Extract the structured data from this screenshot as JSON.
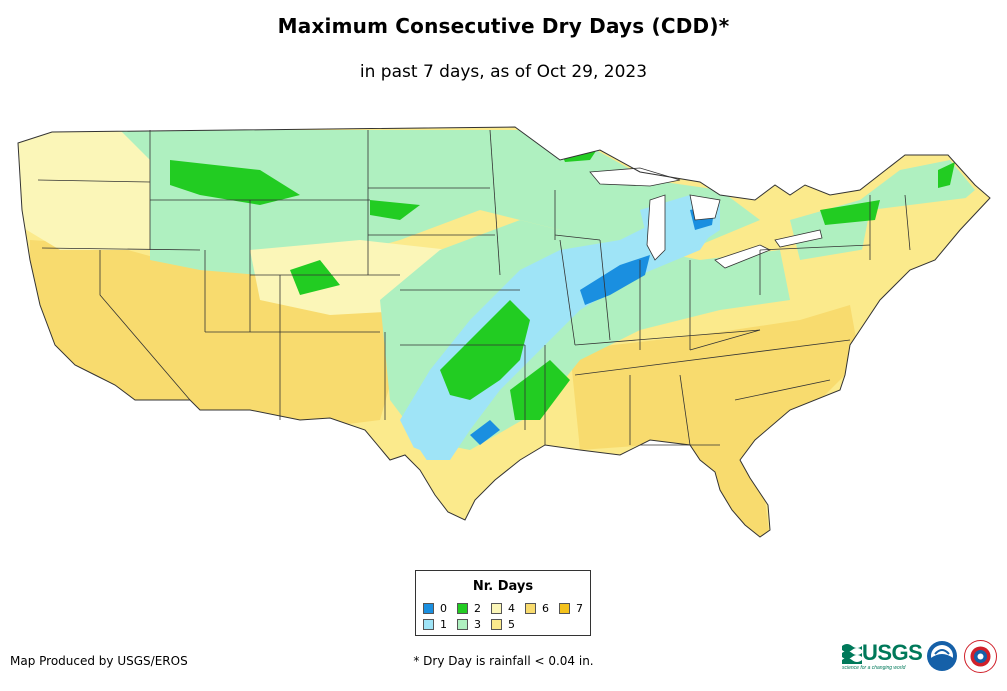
{
  "header": {
    "title": "Maximum Consecutive Dry Days (CDD)*",
    "subtitle": "in past 7 days, as of Oct 29, 2023"
  },
  "legend": {
    "title": "Nr. Days",
    "items": [
      {
        "label": "0",
        "color": "#1a8fe0"
      },
      {
        "label": "1",
        "color": "#9fe4f7"
      },
      {
        "label": "2",
        "color": "#22cc22"
      },
      {
        "label": "3",
        "color": "#aff0c0"
      },
      {
        "label": "4",
        "color": "#fbf6b8"
      },
      {
        "label": "5",
        "color": "#fbea8c"
      },
      {
        "label": "6",
        "color": "#f8db6e"
      },
      {
        "label": "7",
        "color": "#f4c21c"
      }
    ]
  },
  "footer": {
    "credit": "Map Produced by USGS/EROS",
    "footnote": "* Dry Day is rainfall < 0.04 in.",
    "usgs_logo": "USGS",
    "usgs_tagline": "science for a changing world"
  }
}
